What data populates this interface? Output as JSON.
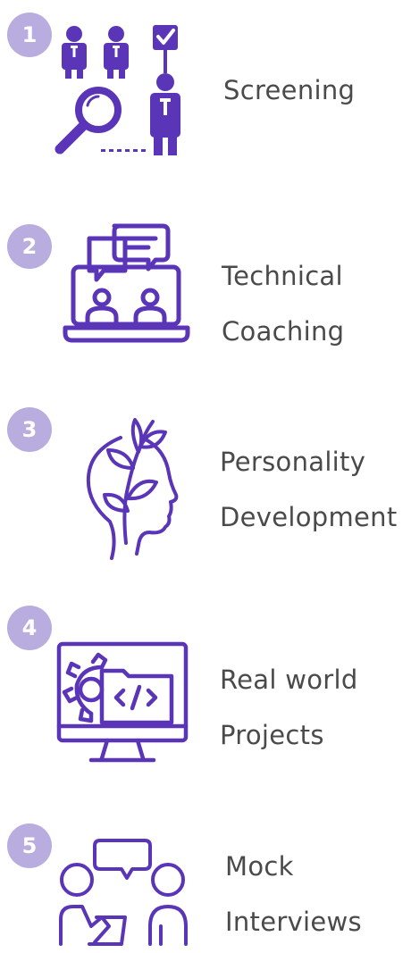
{
  "accent_color": "#5b35b8",
  "badge_color": "#b9acdf",
  "steps": [
    {
      "number": "1",
      "icon": "screening-icon",
      "line1": "Screening",
      "line2": ""
    },
    {
      "number": "2",
      "icon": "technical-coaching-icon",
      "line1": "Technical",
      "line2": "Coaching"
    },
    {
      "number": "3",
      "icon": "personality-development-icon",
      "line1": "Personality",
      "line2": "Development"
    },
    {
      "number": "4",
      "icon": "real-world-projects-icon",
      "line1": "Real world",
      "line2": "Projects"
    },
    {
      "number": "5",
      "icon": "mock-interviews-icon",
      "line1": "Mock",
      "line2": "Interviews"
    }
  ]
}
